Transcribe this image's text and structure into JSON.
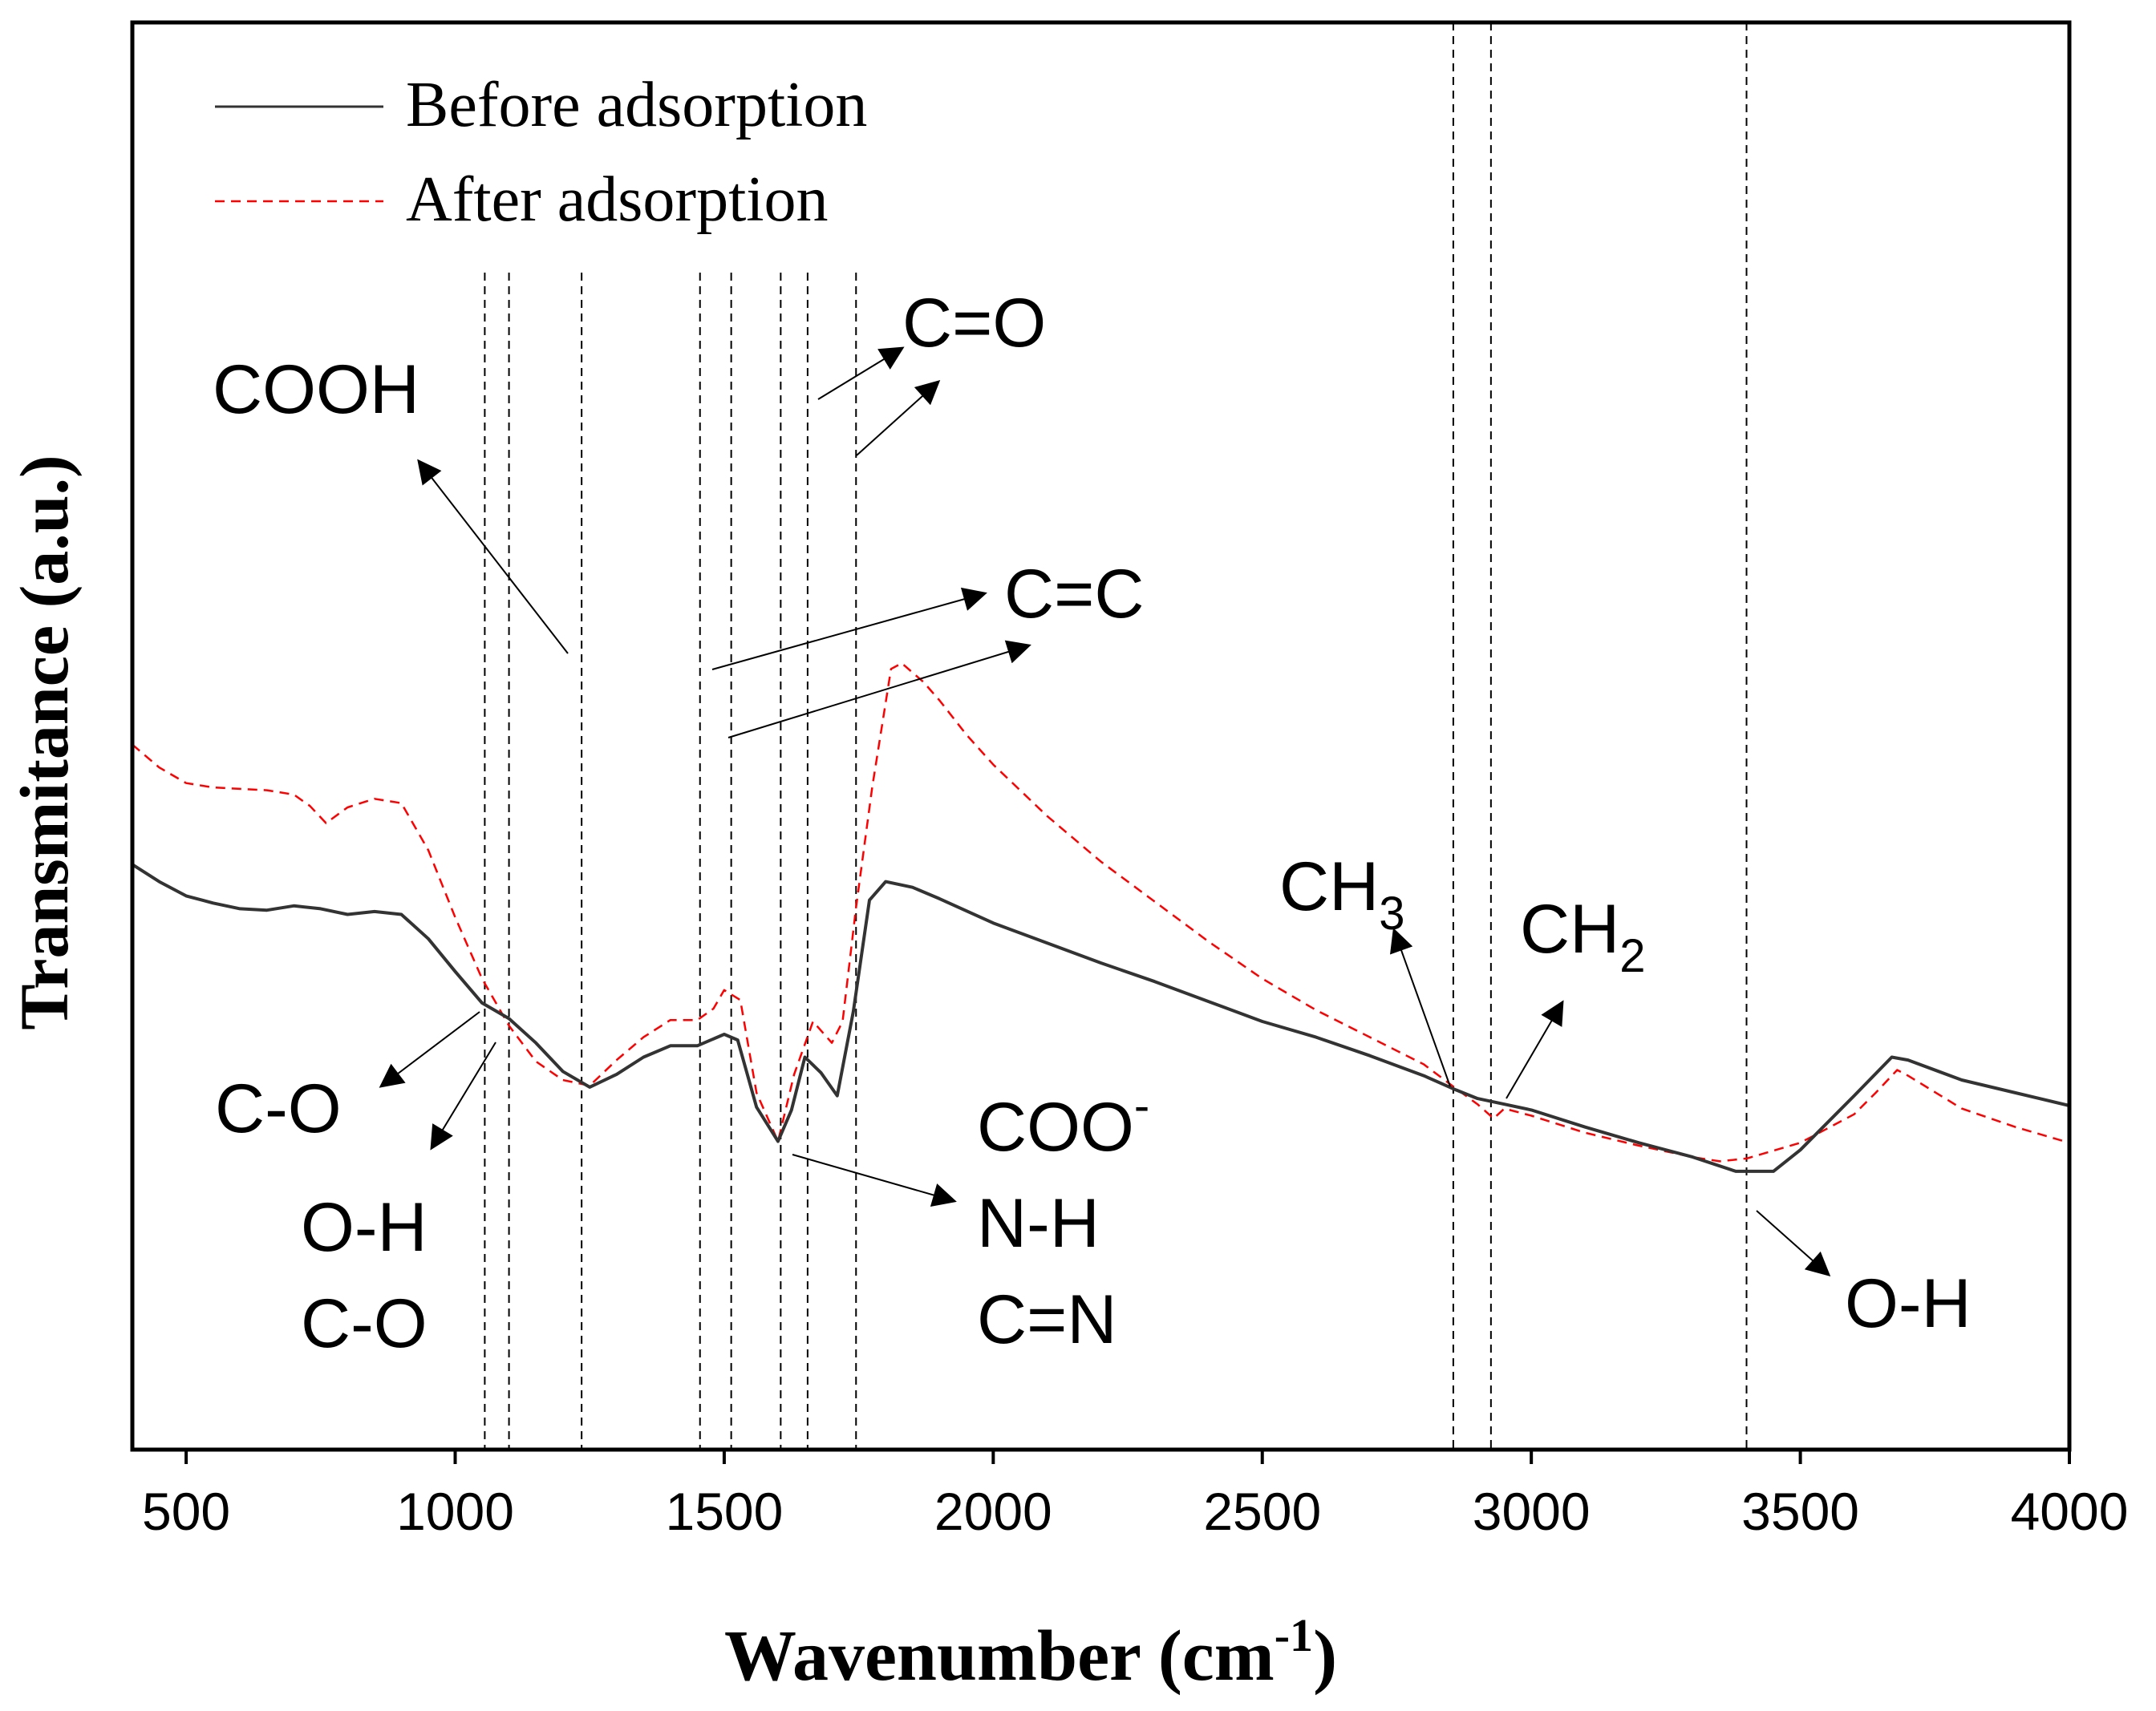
{
  "chart_data": {
    "type": "line",
    "title": "",
    "xlabel_main": "Wavenumber (cm",
    "xlabel_sup": "-1",
    "xlabel_close": ")",
    "ylabel": "Transmitance (a.u.)",
    "xlim": [
      400,
      4000
    ],
    "ylim": [
      0,
      100
    ],
    "xticks": [
      500,
      1000,
      1500,
      2000,
      2500,
      3000,
      3500,
      4000
    ],
    "y_tick_labels": false,
    "legend": {
      "position": "top-left",
      "entries": [
        {
          "name": "Before adsorption",
          "color": "#333333",
          "style": "solid"
        },
        {
          "name": "After adsorption",
          "color": "#ff0000",
          "style": "dashed"
        }
      ]
    },
    "series": [
      {
        "name": "Before adsorption",
        "color": "#333333",
        "points": [
          [
            400,
            41
          ],
          [
            450,
            39.8
          ],
          [
            500,
            38.8
          ],
          [
            550,
            38.3
          ],
          [
            600,
            37.9
          ],
          [
            650,
            37.8
          ],
          [
            700,
            38.1
          ],
          [
            750,
            37.9
          ],
          [
            800,
            37.5
          ],
          [
            850,
            37.7
          ],
          [
            900,
            37.5
          ],
          [
            950,
            35.8
          ],
          [
            1000,
            33.5
          ],
          [
            1050,
            31.3
          ],
          [
            1100,
            30.2
          ],
          [
            1150,
            28.5
          ],
          [
            1200,
            26.5
          ],
          [
            1250,
            25.4
          ],
          [
            1300,
            26.3
          ],
          [
            1350,
            27.5
          ],
          [
            1400,
            28.3
          ],
          [
            1450,
            28.3
          ],
          [
            1500,
            29.1
          ],
          [
            1525,
            28.7
          ],
          [
            1560,
            24
          ],
          [
            1600,
            21.6
          ],
          [
            1625,
            23.8
          ],
          [
            1650,
            27.5
          ],
          [
            1680,
            26.4
          ],
          [
            1710,
            24.8
          ],
          [
            1740,
            30.7
          ],
          [
            1770,
            38.5
          ],
          [
            1800,
            39.8
          ],
          [
            1850,
            39.4
          ],
          [
            1900,
            38.6
          ],
          [
            2000,
            36.9
          ],
          [
            2100,
            35.5
          ],
          [
            2200,
            34.1
          ],
          [
            2300,
            32.8
          ],
          [
            2400,
            31.4
          ],
          [
            2500,
            30.0
          ],
          [
            2600,
            28.9
          ],
          [
            2700,
            27.6
          ],
          [
            2800,
            26.2
          ],
          [
            2860,
            25.2
          ],
          [
            2900,
            24.6
          ],
          [
            2950,
            24.2
          ],
          [
            3000,
            23.8
          ],
          [
            3100,
            22.6
          ],
          [
            3200,
            21.5
          ],
          [
            3300,
            20.5
          ],
          [
            3380,
            19.5
          ],
          [
            3450,
            19.5
          ],
          [
            3500,
            21
          ],
          [
            3600,
            24.8
          ],
          [
            3670,
            27.5
          ],
          [
            3700,
            27.3
          ],
          [
            3800,
            25.9
          ],
          [
            3900,
            25
          ],
          [
            4000,
            24.1
          ]
        ]
      },
      {
        "name": "After adsorption",
        "color": "#ff0000",
        "points": [
          [
            400,
            49.4
          ],
          [
            450,
            47.8
          ],
          [
            500,
            46.7
          ],
          [
            550,
            46.4
          ],
          [
            600,
            46.3
          ],
          [
            650,
            46.2
          ],
          [
            700,
            45.9
          ],
          [
            730,
            45.1
          ],
          [
            760,
            43.9
          ],
          [
            800,
            45
          ],
          [
            850,
            45.6
          ],
          [
            900,
            45.3
          ],
          [
            950,
            42
          ],
          [
            1000,
            37.3
          ],
          [
            1050,
            33
          ],
          [
            1100,
            29.7
          ],
          [
            1150,
            27.2
          ],
          [
            1200,
            25.9
          ],
          [
            1250,
            25.5
          ],
          [
            1300,
            27.3
          ],
          [
            1350,
            28.9
          ],
          [
            1400,
            30.1
          ],
          [
            1450,
            30.1
          ],
          [
            1480,
            30.9
          ],
          [
            1500,
            32.2
          ],
          [
            1530,
            31.5
          ],
          [
            1560,
            25
          ],
          [
            1600,
            21.6
          ],
          [
            1630,
            26.3
          ],
          [
            1665,
            30
          ],
          [
            1700,
            28.5
          ],
          [
            1720,
            30
          ],
          [
            1745,
            38
          ],
          [
            1775,
            46.4
          ],
          [
            1810,
            54.7
          ],
          [
            1830,
            55.1
          ],
          [
            1870,
            53.8
          ],
          [
            1900,
            52.5
          ],
          [
            1950,
            50.1
          ],
          [
            2000,
            48
          ],
          [
            2100,
            44.4
          ],
          [
            2200,
            41.2
          ],
          [
            2300,
            38.4
          ],
          [
            2400,
            35.6
          ],
          [
            2500,
            33
          ],
          [
            2600,
            30.8
          ],
          [
            2700,
            28.9
          ],
          [
            2800,
            27
          ],
          [
            2860,
            25.3
          ],
          [
            2900,
            24.2
          ],
          [
            2930,
            23.2
          ],
          [
            2950,
            23.9
          ],
          [
            3000,
            23.4
          ],
          [
            3100,
            22.2
          ],
          [
            3200,
            21.3
          ],
          [
            3300,
            20.5
          ],
          [
            3350,
            20.2
          ],
          [
            3400,
            20.4
          ],
          [
            3500,
            21.5
          ],
          [
            3600,
            23.5
          ],
          [
            3640,
            25
          ],
          [
            3680,
            26.6
          ],
          [
            3700,
            26.2
          ],
          [
            3800,
            23.9
          ],
          [
            3900,
            22.6
          ],
          [
            4000,
            21.5
          ]
        ]
      }
    ],
    "reference_lines_x": [
      1055,
      1100,
      1235,
      1455,
      1513,
      1605,
      1655,
      1745,
      2855,
      2925,
      3400
    ],
    "annotations": [
      {
        "id": "cooh",
        "text": "COOH"
      },
      {
        "id": "co_top",
        "text": "C=O"
      },
      {
        "id": "cc",
        "text": "C=C"
      },
      {
        "id": "c_o_left",
        "text": "C-O"
      },
      {
        "id": "oh_left",
        "text": "O-H"
      },
      {
        "id": "co_left2",
        "text": "C-O"
      },
      {
        "id": "coo",
        "text": "COO",
        "sup": "-"
      },
      {
        "id": "nh",
        "text": "N-H"
      },
      {
        "id": "cn",
        "text": "C=N"
      },
      {
        "id": "ch3",
        "text": "CH",
        "sub": "3"
      },
      {
        "id": "ch2",
        "text": "CH",
        "sub": "2"
      },
      {
        "id": "oh_right",
        "text": "O-H"
      }
    ]
  }
}
